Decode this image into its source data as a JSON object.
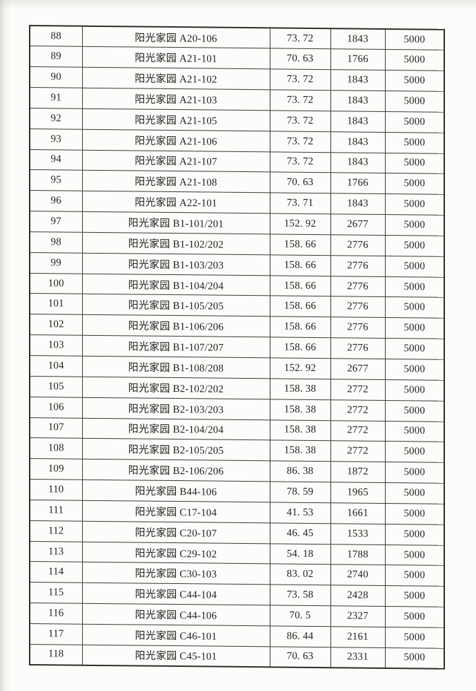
{
  "table": {
    "rows": [
      {
        "no": "88",
        "name": "阳光家园 A20-106",
        "area": "73. 72",
        "price": "1843",
        "deposit": "5000"
      },
      {
        "no": "89",
        "name": "阳光家园 A21-101",
        "area": "70. 63",
        "price": "1766",
        "deposit": "5000"
      },
      {
        "no": "90",
        "name": "阳光家园 A21-102",
        "area": "73. 72",
        "price": "1843",
        "deposit": "5000"
      },
      {
        "no": "91",
        "name": "阳光家园 A21-103",
        "area": "73. 72",
        "price": "1843",
        "deposit": "5000"
      },
      {
        "no": "92",
        "name": "阳光家园 A21-105",
        "area": "73. 72",
        "price": "1843",
        "deposit": "5000"
      },
      {
        "no": "93",
        "name": "阳光家园 A21-106",
        "area": "73. 72",
        "price": "1843",
        "deposit": "5000"
      },
      {
        "no": "94",
        "name": "阳光家园 A21-107",
        "area": "73. 72",
        "price": "1843",
        "deposit": "5000"
      },
      {
        "no": "95",
        "name": "阳光家园 A21-108",
        "area": "70. 63",
        "price": "1766",
        "deposit": "5000"
      },
      {
        "no": "96",
        "name": "阳光家园 A22-101",
        "area": "73. 71",
        "price": "1843",
        "deposit": "5000"
      },
      {
        "no": "97",
        "name": "阳光家园 B1-101/201",
        "area": "152. 92",
        "price": "2677",
        "deposit": "5000"
      },
      {
        "no": "98",
        "name": "阳光家园 B1-102/202",
        "area": "158. 66",
        "price": "2776",
        "deposit": "5000"
      },
      {
        "no": "99",
        "name": "阳光家园 B1-103/203",
        "area": "158. 66",
        "price": "2776",
        "deposit": "5000"
      },
      {
        "no": "100",
        "name": "阳光家园 B1-104/204",
        "area": "158. 66",
        "price": "2776",
        "deposit": "5000"
      },
      {
        "no": "101",
        "name": "阳光家园 B1-105/205",
        "area": "158. 66",
        "price": "2776",
        "deposit": "5000"
      },
      {
        "no": "102",
        "name": "阳光家园 B1-106/206",
        "area": "158. 66",
        "price": "2776",
        "deposit": "5000"
      },
      {
        "no": "103",
        "name": "阳光家园 B1-107/207",
        "area": "158. 66",
        "price": "2776",
        "deposit": "5000"
      },
      {
        "no": "104",
        "name": "阳光家园 B1-108/208",
        "area": "152. 92",
        "price": "2677",
        "deposit": "5000"
      },
      {
        "no": "105",
        "name": "阳光家园 B2-102/202",
        "area": "158. 38",
        "price": "2772",
        "deposit": "5000"
      },
      {
        "no": "106",
        "name": "阳光家园 B2-103/203",
        "area": "158. 38",
        "price": "2772",
        "deposit": "5000"
      },
      {
        "no": "107",
        "name": "阳光家园 B2-104/204",
        "area": "158. 38",
        "price": "2772",
        "deposit": "5000"
      },
      {
        "no": "108",
        "name": "阳光家园 B2-105/205",
        "area": "158. 38",
        "price": "2772",
        "deposit": "5000"
      },
      {
        "no": "109",
        "name": "阳光家园 B2-106/206",
        "area": "86. 38",
        "price": "1872",
        "deposit": "5000"
      },
      {
        "no": "110",
        "name": "阳光家园 B44-106",
        "area": "78. 59",
        "price": "1965",
        "deposit": "5000"
      },
      {
        "no": "111",
        "name": "阳光家园 C17-104",
        "area": "41. 53",
        "price": "1661",
        "deposit": "5000"
      },
      {
        "no": "112",
        "name": "阳光家园 C20-107",
        "area": "46. 45",
        "price": "1533",
        "deposit": "5000"
      },
      {
        "no": "113",
        "name": "阳光家园 C29-102",
        "area": "54. 18",
        "price": "1788",
        "deposit": "5000"
      },
      {
        "no": "114",
        "name": "阳光家园 C30-103",
        "area": "83. 02",
        "price": "2740",
        "deposit": "5000"
      },
      {
        "no": "115",
        "name": "阳光家园 C44-104",
        "area": "73. 58",
        "price": "2428",
        "deposit": "5000"
      },
      {
        "no": "116",
        "name": "阳光家园 C44-106",
        "area": "70. 5",
        "price": "2327",
        "deposit": "5000"
      },
      {
        "no": "117",
        "name": "阳光家园 C46-101",
        "area": "86. 44",
        "price": "2161",
        "deposit": "5000"
      },
      {
        "no": "118",
        "name": "阳光家园 C45-101",
        "area": "70. 63",
        "price": "2331",
        "deposit": "5000"
      }
    ]
  }
}
